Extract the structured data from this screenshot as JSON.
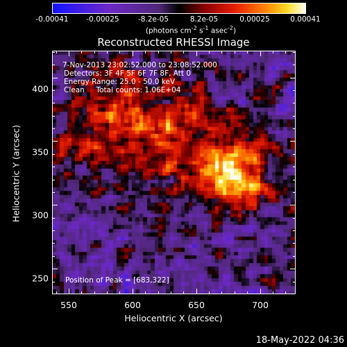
{
  "colorbar": {
    "ticks": [
      "-0.00041",
      "-0.00025",
      "-8.2e-05",
      "8.2e-05",
      "0.00025",
      "0.00041"
    ],
    "unit_prefix": "(photons cm",
    "unit_e1": "-2",
    "unit_s": " s",
    "unit_e2": "-1",
    "unit_asec": " asec",
    "unit_e3": "-2",
    "unit_suffix": ")"
  },
  "title": "Reconstructed RHESSI Image",
  "annotations": {
    "time": "7-Nov-2013 23:02:52.000 to 23:08:52.000",
    "detectors": "Detectors: 3F 4F 5F 6F 7F 8F, Att 0",
    "energy": "Energy Range: 25.0 - 50.0 keV",
    "clean": "Clean     Total counts: 1.06E+04",
    "peak": "Position of Peak = [683,322]"
  },
  "axes": {
    "xlabel": "Heliocentric X (arcsec)",
    "ylabel": "Heliocentric Y (arcsec)",
    "xticks": [
      "550",
      "600",
      "650",
      "700"
    ],
    "yticks": [
      "400",
      "350",
      "300",
      "250"
    ],
    "xlim": [
      537,
      728
    ],
    "ylim": [
      230,
      421
    ]
  },
  "timestamp": "18-May-2022 04:36"
}
